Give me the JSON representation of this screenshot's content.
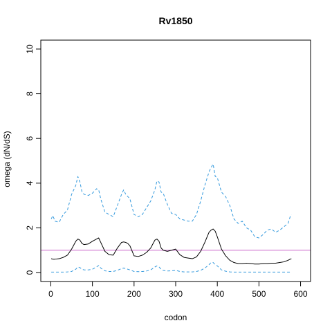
{
  "chart_data": {
    "type": "line",
    "title": "Rv1850",
    "xlabel": "codon",
    "ylabel": "omega (dN/dS)",
    "xlim": [
      0,
      600
    ],
    "ylim": [
      0,
      10
    ],
    "xticks": [
      0,
      100,
      200,
      300,
      400,
      500,
      600
    ],
    "yticks": [
      0,
      2,
      4,
      6,
      8,
      10
    ],
    "grid": false,
    "legend": "none",
    "reference_line": {
      "y": 1,
      "color": "#cc66cc"
    },
    "colors": {
      "estimate": "#000000",
      "bounds": "#3399dd",
      "axes": "#000000"
    },
    "series": [
      {
        "role": "upper-bound",
        "style": "dashed",
        "x": [
          1,
          5,
          10,
          20,
          30,
          40,
          50,
          60,
          65,
          70,
          75,
          80,
          90,
          100,
          110,
          115,
          120,
          130,
          140,
          150,
          160,
          170,
          175,
          180,
          185,
          190,
          200,
          210,
          220,
          230,
          240,
          250,
          255,
          260,
          265,
          270,
          280,
          290,
          300,
          310,
          320,
          330,
          340,
          350,
          360,
          370,
          380,
          385,
          390,
          395,
          400,
          410,
          420,
          430,
          440,
          450,
          460,
          470,
          480,
          490,
          500,
          510,
          520,
          530,
          540,
          550,
          560,
          570,
          575,
          578
        ],
        "y": [
          2.4,
          2.55,
          2.3,
          2.25,
          2.6,
          2.8,
          3.5,
          3.9,
          4.3,
          4.05,
          3.6,
          3.5,
          3.45,
          3.55,
          3.75,
          3.7,
          3.3,
          2.7,
          2.6,
          2.5,
          3.0,
          3.5,
          3.7,
          3.5,
          3.4,
          3.3,
          2.6,
          2.5,
          2.6,
          2.9,
          3.2,
          3.7,
          4.1,
          4.05,
          3.6,
          3.55,
          3.05,
          2.65,
          2.6,
          2.4,
          2.35,
          2.3,
          2.3,
          2.6,
          3.2,
          3.9,
          4.5,
          4.7,
          4.85,
          4.3,
          4.25,
          3.6,
          3.4,
          3.0,
          2.4,
          2.2,
          2.3,
          2.0,
          1.9,
          1.6,
          1.55,
          1.7,
          1.9,
          1.95,
          1.8,
          1.9,
          2.05,
          2.2,
          2.5,
          2.6
        ]
      },
      {
        "role": "estimate",
        "style": "solid",
        "x": [
          1,
          5,
          10,
          20,
          30,
          40,
          50,
          60,
          65,
          70,
          75,
          80,
          90,
          100,
          110,
          115,
          120,
          130,
          140,
          150,
          160,
          170,
          175,
          180,
          185,
          190,
          200,
          210,
          220,
          230,
          240,
          250,
          255,
          260,
          265,
          270,
          280,
          290,
          300,
          310,
          320,
          330,
          340,
          350,
          360,
          370,
          380,
          385,
          390,
          395,
          400,
          410,
          420,
          430,
          440,
          450,
          460,
          470,
          480,
          490,
          500,
          510,
          520,
          530,
          540,
          550,
          560,
          570,
          575,
          578
        ],
        "y": [
          0.62,
          0.6,
          0.6,
          0.62,
          0.68,
          0.78,
          1.05,
          1.4,
          1.5,
          1.45,
          1.3,
          1.25,
          1.28,
          1.4,
          1.5,
          1.55,
          1.35,
          0.95,
          0.8,
          0.78,
          1.1,
          1.35,
          1.37,
          1.35,
          1.3,
          1.2,
          0.75,
          0.72,
          0.78,
          0.9,
          1.1,
          1.45,
          1.5,
          1.4,
          1.1,
          1.0,
          0.95,
          1.0,
          1.05,
          0.8,
          0.68,
          0.65,
          0.62,
          0.7,
          0.95,
          1.35,
          1.8,
          1.9,
          1.95,
          1.85,
          1.6,
          1.05,
          0.75,
          0.55,
          0.45,
          0.4,
          0.4,
          0.42,
          0.4,
          0.38,
          0.38,
          0.4,
          0.4,
          0.42,
          0.42,
          0.45,
          0.48,
          0.55,
          0.6,
          0.62
        ]
      },
      {
        "role": "lower-bound",
        "style": "dashed",
        "x": [
          1,
          10,
          20,
          30,
          40,
          50,
          60,
          65,
          70,
          75,
          80,
          90,
          100,
          110,
          115,
          120,
          130,
          140,
          150,
          160,
          170,
          175,
          180,
          185,
          190,
          200,
          210,
          220,
          230,
          240,
          250,
          255,
          260,
          265,
          270,
          280,
          290,
          300,
          310,
          320,
          330,
          340,
          350,
          360,
          370,
          380,
          385,
          390,
          395,
          400,
          410,
          420,
          430,
          440,
          450,
          460,
          470,
          480,
          490,
          500,
          510,
          520,
          530,
          540,
          550,
          560,
          570,
          578
        ],
        "y": [
          0.02,
          0.02,
          0.02,
          0.02,
          0.03,
          0.05,
          0.15,
          0.25,
          0.22,
          0.15,
          0.12,
          0.12,
          0.15,
          0.25,
          0.32,
          0.2,
          0.08,
          0.05,
          0.05,
          0.1,
          0.18,
          0.2,
          0.18,
          0.15,
          0.12,
          0.05,
          0.04,
          0.05,
          0.07,
          0.12,
          0.25,
          0.3,
          0.25,
          0.15,
          0.1,
          0.07,
          0.08,
          0.1,
          0.05,
          0.03,
          0.03,
          0.03,
          0.05,
          0.1,
          0.2,
          0.35,
          0.45,
          0.45,
          0.35,
          0.3,
          0.12,
          0.06,
          0.03,
          0.02,
          0.02,
          0.02,
          0.02,
          0.02,
          0.02,
          0.02,
          0.02,
          0.02,
          0.02,
          0.02,
          0.02,
          0.02,
          0.02,
          0.02
        ]
      }
    ]
  }
}
